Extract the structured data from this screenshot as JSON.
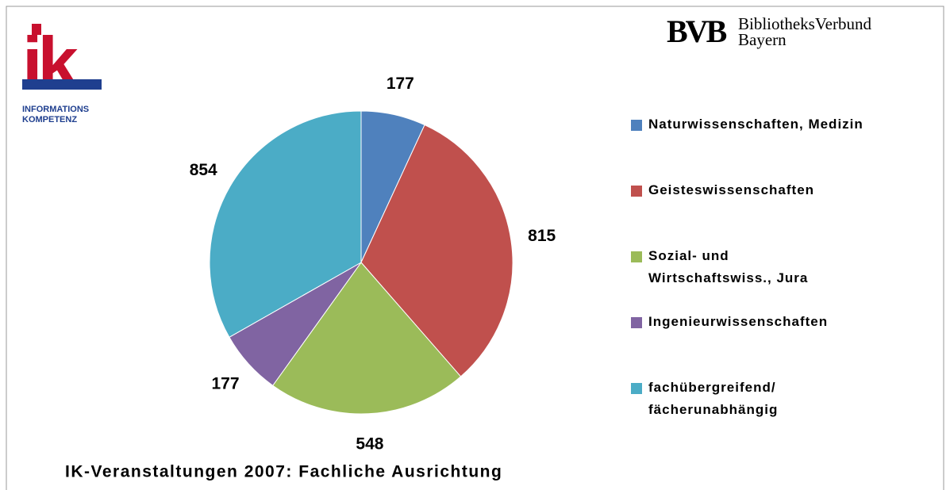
{
  "logos": {
    "ik": "ik",
    "ik_line1": "INFORMATIONS",
    "ik_line2": "KOMPETENZ",
    "bvb": "BVB",
    "bvb_line1": "BibliotheksVerbund",
    "bvb_line2": "Bayern"
  },
  "chart_data": {
    "type": "pie",
    "title": "IK-Veranstaltungen 2007: Fachliche Ausrichtung",
    "categories": [
      "Naturwissenschaften, Medizin",
      "Geisteswissenschaften",
      "Sozial- und Wirtschaftswiss., Jura",
      "Ingenieurwissenschaften",
      "fachübergreifend/ fächerunabhängig"
    ],
    "values": [
      177,
      815,
      548,
      177,
      854
    ],
    "colors": [
      "#4f81bd",
      "#c0504d",
      "#9bbb59",
      "#8064a2",
      "#4bacc6"
    ],
    "legend": "right"
  }
}
